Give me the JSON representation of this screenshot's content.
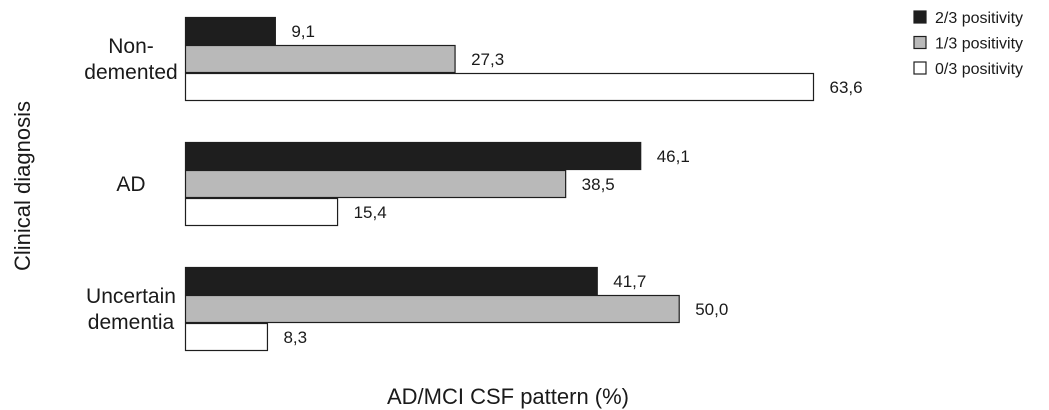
{
  "chart_data": {
    "type": "bar",
    "orientation": "horizontal",
    "xlabel": "AD/MCI CSF pattern (%)",
    "ylabel": "Clinical diagnosis",
    "categories": [
      [
        "Non-",
        "demented"
      ],
      [
        "AD"
      ],
      [
        "Uncertain",
        "dementia"
      ]
    ],
    "series": [
      {
        "name": "2/3 positivity",
        "color": "#1e1e1e",
        "values": [
          9.1,
          46.1,
          41.7
        ],
        "labels": [
          "9,1",
          "46,1",
          "41,7"
        ]
      },
      {
        "name": "1/3 positivity",
        "color": "#b9b9b9",
        "values": [
          27.3,
          38.5,
          50.0
        ],
        "labels": [
          "27,3",
          "38,5",
          "50,0"
        ]
      },
      {
        "name": "0/3 positivity",
        "color": "#ffffff",
        "values": [
          63.6,
          15.4,
          8.3
        ],
        "labels": [
          "63,6",
          "15,4",
          "8,3"
        ]
      }
    ],
    "xlim": [
      0,
      100
    ],
    "grid": false,
    "legend": "top-right"
  }
}
